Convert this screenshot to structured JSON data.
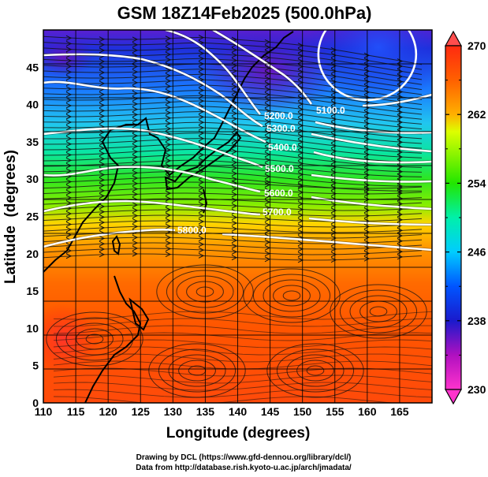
{
  "chart_data": {
    "type": "heatmap",
    "title": "GSM 18Z14Feb2025 (500.0hPa)",
    "xlabel": "Longitude (degrees)",
    "ylabel": "Latitude  (degrees)",
    "xlim": [
      110,
      170
    ],
    "ylim": [
      0,
      50
    ],
    "x_ticks": [
      "110",
      "115",
      "120",
      "125",
      "130",
      "135",
      "140",
      "145",
      "150",
      "155",
      "160",
      "165"
    ],
    "y_ticks": [
      "0",
      "5",
      "10",
      "15",
      "20",
      "25",
      "30",
      "35",
      "40",
      "45"
    ],
    "grid": true,
    "fill_variable": "temperature (K)",
    "colorbar": {
      "range": [
        230,
        270
      ],
      "ticks": [
        "230",
        "238",
        "246",
        "254",
        "262",
        "270"
      ],
      "colors": [
        "#ff33cc",
        "#9900cc",
        "#1a1acc",
        "#0066ff",
        "#00e5ff",
        "#00ff99",
        "#33e600",
        "#ccff00",
        "#ffcc00",
        "#ff8000",
        "#ff3300",
        "#ff4d4d"
      ],
      "extend": "both",
      "placement": "right"
    },
    "contours": {
      "variable": "geopotential height (m)",
      "color": "#ffffff",
      "levels": [
        {
          "value": 5100,
          "label": "5100.0"
        },
        {
          "value": 5200,
          "label": "5200.0"
        },
        {
          "value": 5300,
          "label": "5300.0"
        },
        {
          "value": 5400,
          "label": "5400.0"
        },
        {
          "value": 5500,
          "label": "5500.0"
        },
        {
          "value": 5600,
          "label": "5600.0"
        },
        {
          "value": 5700,
          "label": "5700.0"
        },
        {
          "value": 5800,
          "label": "5800.0"
        }
      ],
      "closed_low_center": {
        "lon": 160,
        "lat": 48
      }
    },
    "overlays": [
      "streamlines",
      "coastlines"
    ]
  },
  "credits": {
    "line1": "Drawing by DCL (https://www.gfd-dennou.org/library/dcl/)",
    "line2": "Data from http://database.rish.kyoto-u.ac.jp/arch/jmadata/"
  }
}
